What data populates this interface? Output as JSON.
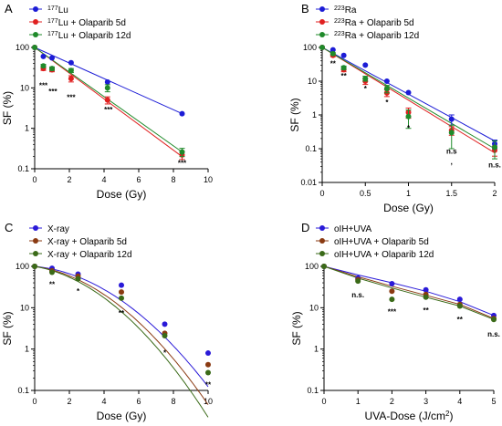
{
  "chart_data": [
    {
      "panel": "A",
      "type": "scatter",
      "xlabel": "Dose (Gy)",
      "ylabel": "SF (%)",
      "xlim": [
        0,
        10
      ],
      "ylim": [
        0.1,
        100
      ],
      "yscale": "log",
      "xticks": [
        "0",
        "2",
        "4",
        "6",
        "8",
        "10"
      ],
      "yticks": [
        "0.1",
        "1",
        "10",
        "100"
      ],
      "legend_position": "top-left",
      "series": [
        {
          "name_base": "177",
          "name_sup": "177",
          "name_rest": "Lu",
          "color": "#1c1cd6",
          "x": [
            0,
            0.5,
            1,
            2.1,
            4.2,
            8.5
          ],
          "y": [
            100,
            60,
            55,
            42,
            14,
            2.3
          ],
          "err": [
            0,
            0,
            0,
            0,
            0,
            0
          ],
          "fit": {
            "x": [
              0,
              8.5
            ],
            "y": [
              100,
              2.3
            ]
          }
        },
        {
          "name_base": "177",
          "name_sup": "177",
          "name_rest": "Lu + Olaparib  5d",
          "color": "#e02020",
          "x": [
            0,
            0.5,
            1,
            2.1,
            4.2,
            8.5
          ],
          "y": [
            100,
            30,
            28,
            17,
            5,
            0.22
          ],
          "err": [
            0,
            3,
            3,
            3,
            1,
            0.05
          ],
          "fit": {
            "x": [
              0,
              8.5
            ],
            "y": [
              100,
              0.2
            ]
          }
        },
        {
          "name_base": "177",
          "name_sup": "177",
          "name_rest": "Lu + Olaparib 12d",
          "color": "#1f8a2a",
          "x": [
            0,
            0.5,
            1,
            2.1,
            4.2,
            8.5
          ],
          "y": [
            100,
            35,
            30,
            27,
            10,
            0.26
          ],
          "err": [
            0,
            3,
            3,
            3,
            2,
            0.06
          ],
          "fit": {
            "x": [
              0,
              8.5
            ],
            "y": [
              100,
              0.26
            ]
          }
        }
      ],
      "annotations": [
        {
          "x": 0.5,
          "y": 10,
          "text": "***"
        },
        {
          "x": 1.05,
          "y": 7,
          "text": "***"
        },
        {
          "x": 2.1,
          "y": 5,
          "text": "***"
        },
        {
          "x": 4.25,
          "y": 2.5,
          "text": "***"
        },
        {
          "x": 8.5,
          "y": 0.12,
          "text": "***"
        }
      ]
    },
    {
      "panel": "B",
      "type": "scatter",
      "xlabel": "Dose (Gy)",
      "ylabel": "SF (%)",
      "xlim": [
        0,
        2
      ],
      "ylim": [
        0.01,
        100
      ],
      "yscale": "log",
      "xticks": [
        "0",
        "0.5",
        "1",
        "1.5",
        "2"
      ],
      "yticks": [
        "0.01",
        "0.1",
        "1",
        "10",
        "100"
      ],
      "legend_position": "top-left",
      "series": [
        {
          "name_sup": "223",
          "name_rest": "Ra",
          "color": "#1c1cd6",
          "x": [
            0,
            0.125,
            0.25,
            0.5,
            0.75,
            1,
            1.5,
            2
          ],
          "y": [
            100,
            85,
            58,
            30,
            10,
            4.6,
            0.75,
            0.14
          ],
          "err": [
            0,
            0,
            0,
            0,
            0,
            0,
            0.25,
            0.04
          ],
          "fit": {
            "x": [
              0,
              2
            ],
            "y": [
              100,
              0.17
            ]
          }
        },
        {
          "name_sup": "223",
          "name_rest": "Ra + Olaparib 5d",
          "color": "#e02020",
          "x": [
            0,
            0.125,
            0.25,
            0.5,
            0.75,
            1,
            1.5,
            2
          ],
          "y": [
            100,
            58,
            22,
            10,
            4.5,
            1.2,
            0.35,
            0.09
          ],
          "err": [
            0,
            5,
            3,
            2,
            1,
            0.4,
            0.1,
            0.03
          ],
          "fit": {
            "x": [
              0,
              2
            ],
            "y": [
              100,
              0.075
            ]
          }
        },
        {
          "name_sup": "223",
          "name_rest": "Ra + Olaparib 12d",
          "color": "#1f8a2a",
          "x": [
            0,
            0.125,
            0.25,
            0.5,
            0.75,
            1,
            1.5,
            2
          ],
          "y": [
            100,
            65,
            25,
            12,
            6,
            0.9,
            0.3,
            0.11
          ],
          "err": [
            0,
            5,
            3,
            2,
            1.5,
            0.5,
            0.2,
            0.06
          ],
          "fit": {
            "x": [
              0,
              2
            ],
            "y": [
              100,
              0.1
            ]
          }
        }
      ],
      "annotations": [
        {
          "x": 0.125,
          "y": 28,
          "text": "**"
        },
        {
          "x": 0.25,
          "y": 12,
          "text": "**"
        },
        {
          "x": 0.5,
          "y": 5,
          "text": "*"
        },
        {
          "x": 0.75,
          "y": 2,
          "text": "*"
        },
        {
          "x": 1.0,
          "y": 0.35,
          "text": "*"
        },
        {
          "x": 1.5,
          "y": 0.07,
          "text": "n.s"
        },
        {
          "x": 1.5,
          "y": 0.035,
          "text": ","
        },
        {
          "x": 2.0,
          "y": 0.028,
          "text": "n.s."
        }
      ]
    },
    {
      "panel": "C",
      "type": "scatter",
      "xlabel": "Dose (Gy)",
      "ylabel": "SF (%)",
      "xlim": [
        0,
        10
      ],
      "ylim": [
        0.1,
        100
      ],
      "yscale": "log",
      "xticks": [
        "0",
        "2",
        "4",
        "6",
        "8",
        "10"
      ],
      "yticks": [
        "0.1",
        "1",
        "10",
        "100"
      ],
      "legend_position": "top-left",
      "series": [
        {
          "name": "X-ray",
          "color": "#2a1ad8",
          "x": [
            0,
            1,
            2.5,
            5,
            7.5,
            10
          ],
          "y": [
            100,
            90,
            65,
            35,
            4,
            0.8
          ],
          "err": [
            0,
            0,
            0,
            0,
            0,
            0
          ],
          "fit": {
            "alpha": 0.09,
            "beta": 0.058
          }
        },
        {
          "name": "X-ray + Olaparib 5d",
          "color": "#8a3a12",
          "x": [
            0,
            1,
            2.5,
            5,
            7.5,
            10
          ],
          "y": [
            100,
            78,
            58,
            24,
            2.4,
            0.42
          ],
          "err": [
            0,
            0,
            0,
            0,
            0,
            0
          ],
          "fit": {
            "alpha": 0.14,
            "beta": 0.063
          }
        },
        {
          "name": "X-ray + Olaparib 12d",
          "color": "#3a6a18",
          "x": [
            0,
            1,
            2.5,
            5,
            7.5,
            10
          ],
          "y": [
            100,
            72,
            50,
            17,
            2.1,
            0.27
          ],
          "err": [
            0,
            0,
            0,
            0,
            0,
            0
          ],
          "fit": {
            "alpha": 0.17,
            "beta": 0.067
          }
        }
      ],
      "annotations": [
        {
          "x": 1,
          "y": 32,
          "text": "**"
        },
        {
          "x": 2.5,
          "y": 22,
          "text": "*"
        },
        {
          "x": 5,
          "y": 6.5,
          "text": "**"
        },
        {
          "x": 7.5,
          "y": 0.7,
          "text": "*"
        },
        {
          "x": 10,
          "y": 0.12,
          "text": "**"
        }
      ]
    },
    {
      "panel": "D",
      "type": "scatter",
      "xlabel_main": "UVA-Dose (J/cm",
      "xlabel_sup": "2",
      "xlabel_end": ")",
      "ylabel": "SF (%)",
      "xlim": [
        0,
        5
      ],
      "ylim": [
        0.1,
        100
      ],
      "yscale": "log",
      "xticks": [
        "0",
        "1",
        "2",
        "3",
        "4",
        "5"
      ],
      "yticks": [
        "0.1",
        "1",
        "10",
        "100"
      ],
      "legend_position": "top-left",
      "series": [
        {
          "name": "oIH+UVA",
          "color": "#2a1ad8",
          "x": [
            0,
            1,
            2,
            3,
            4,
            5
          ],
          "y": [
            100,
            52,
            38,
            27,
            16,
            6.5
          ],
          "err": [
            0,
            0,
            0,
            0,
            0,
            0
          ],
          "fit": {
            "x": [
              0,
              1,
              2,
              3,
              4,
              5
            ],
            "y": [
              100,
              62,
              40,
              25,
              14,
              6.5
            ]
          }
        },
        {
          "name": "oIH+UVA + Olaparib 5d",
          "color": "#8a3a12",
          "x": [
            0,
            1,
            2,
            3,
            4,
            5
          ],
          "y": [
            100,
            48,
            25,
            21,
            12,
            5.5
          ],
          "err": [
            0,
            0,
            0,
            0,
            0,
            0
          ],
          "fit": {
            "x": [
              0,
              1,
              2,
              3,
              4,
              5
            ],
            "y": [
              100,
              56,
              33,
              20,
              12,
              5.5
            ]
          }
        },
        {
          "name": "oIH+UVA + Olaparib 12d",
          "color": "#3a6a18",
          "x": [
            0,
            1,
            2,
            3,
            4,
            5
          ],
          "y": [
            100,
            44,
            16,
            18,
            11,
            5.2
          ],
          "err": [
            0,
            0,
            0,
            0,
            0,
            0
          ],
          "fit": {
            "x": [
              0,
              1,
              2,
              3,
              4,
              5
            ],
            "y": [
              100,
              52,
              30,
              18,
              11,
              5.2
            ]
          }
        }
      ],
      "annotations": [
        {
          "x": 1,
          "y": 18,
          "text": "n.s."
        },
        {
          "x": 2,
          "y": 7,
          "text": "***"
        },
        {
          "x": 3,
          "y": 7.5,
          "text": "**"
        },
        {
          "x": 4,
          "y": 4.5,
          "text": "**"
        },
        {
          "x": 5,
          "y": 2.0,
          "text": "n.s."
        }
      ]
    }
  ]
}
